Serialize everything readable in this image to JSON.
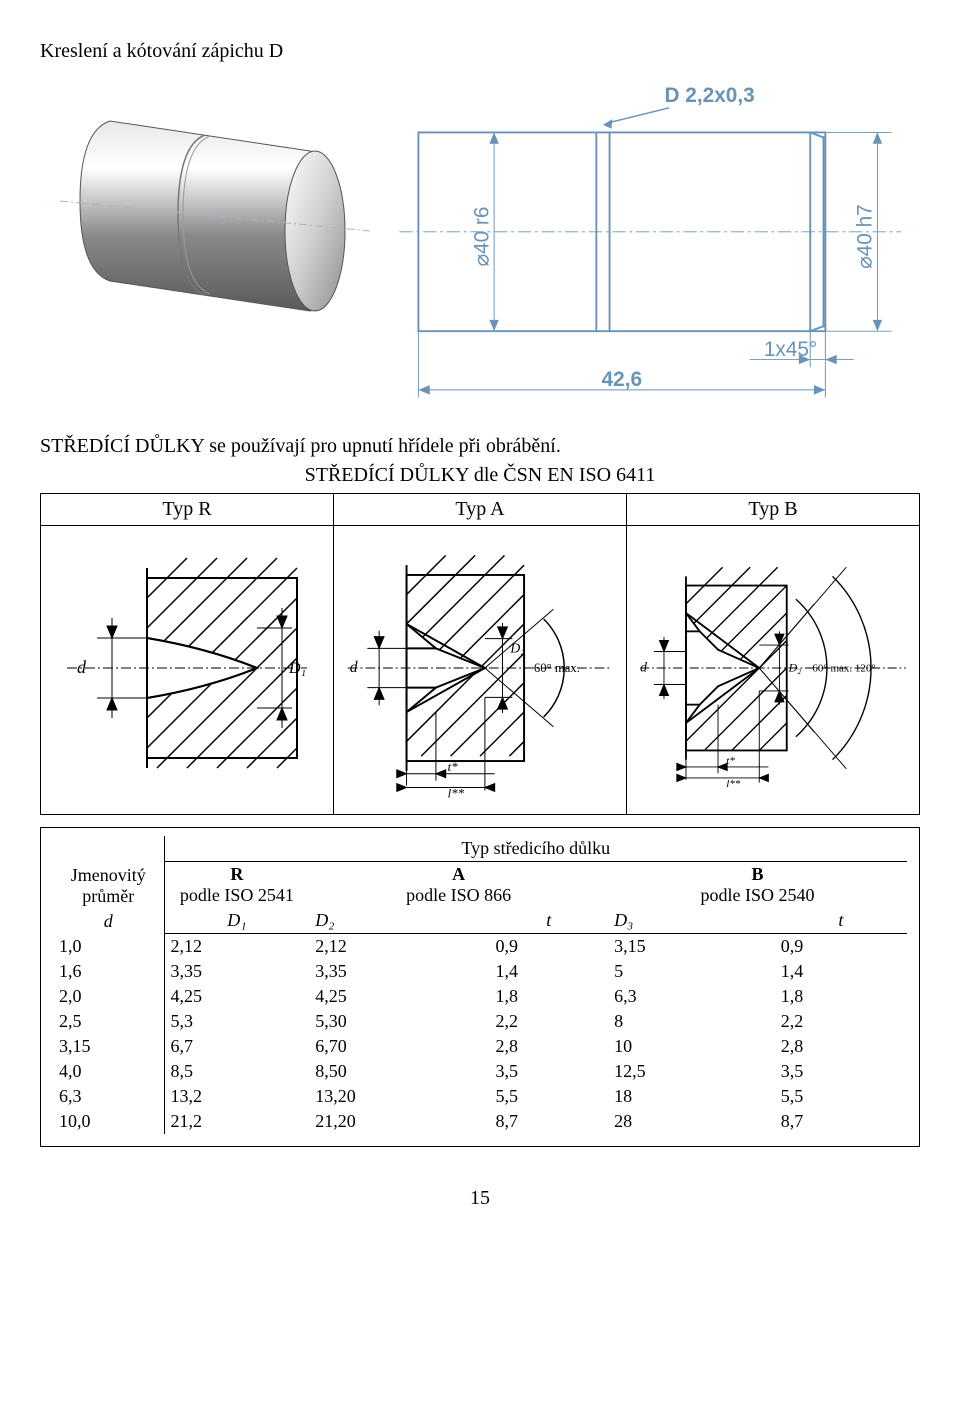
{
  "title": "Kreslení a kótování zápichu D",
  "top_drawing": {
    "callout": "D 2,2x0,3",
    "dim_left": "⌀40 r6",
    "dim_right": "⌀40 h7",
    "chamfer": "1x45°",
    "length": "42,6",
    "line_color": "#6a93b8",
    "thin_color": "#6a93b8",
    "bg": "#ffffff"
  },
  "section_text": "STŘEDÍCÍ DŮLKY se používají pro upnutí hřídele při obrábění.",
  "table_caption": "STŘEDÍCÍ DŮLKY dle ČSN EN ISO 6411",
  "types": {
    "r": {
      "label": "Typ R",
      "d": "d",
      "D": "D₁"
    },
    "a": {
      "label": "Typ A",
      "d": "d",
      "D": "D₂",
      "angle": "60° max."
    },
    "b": {
      "label": "Typ B",
      "d": "d",
      "D": "D₂",
      "angle": "60° max. 120°"
    }
  },
  "data_table": {
    "super_header": "Typ středicího důlku",
    "col_d_label": "Jmenovitý průměr",
    "col_d_sym": "d",
    "groups": [
      {
        "name": "R",
        "sub": "podle ISO 2541",
        "cols": [
          "D₁"
        ]
      },
      {
        "name": "A",
        "sub": "podle ISO 866",
        "cols": [
          "D₂",
          "t"
        ]
      },
      {
        "name": "B",
        "sub": "podle ISO 2540",
        "cols": [
          "D₃",
          "t"
        ]
      }
    ],
    "rows": [
      [
        "1,0",
        "2,12",
        "2,12",
        "0,9",
        "3,15",
        "0,9"
      ],
      [
        "1,6",
        "3,35",
        "3,35",
        "1,4",
        "5",
        "1,4"
      ],
      [
        "2,0",
        "4,25",
        "4,25",
        "1,8",
        "6,3",
        "1,8"
      ],
      [
        "2,5",
        "5,3",
        "5,30",
        "2,2",
        "8",
        "2,2"
      ],
      [
        "3,15",
        "6,7",
        "6,70",
        "2,8",
        "10",
        "2,8"
      ],
      [
        "4,0",
        "8,5",
        "8,50",
        "3,5",
        "12,5",
        "3,5"
      ],
      [
        "6,3",
        "13,2",
        "13,20",
        "5,5",
        "18",
        "5,5"
      ],
      [
        "10,0",
        "21,2",
        "21,20",
        "8,7",
        "28",
        "8,7"
      ]
    ]
  },
  "page_number": "15"
}
